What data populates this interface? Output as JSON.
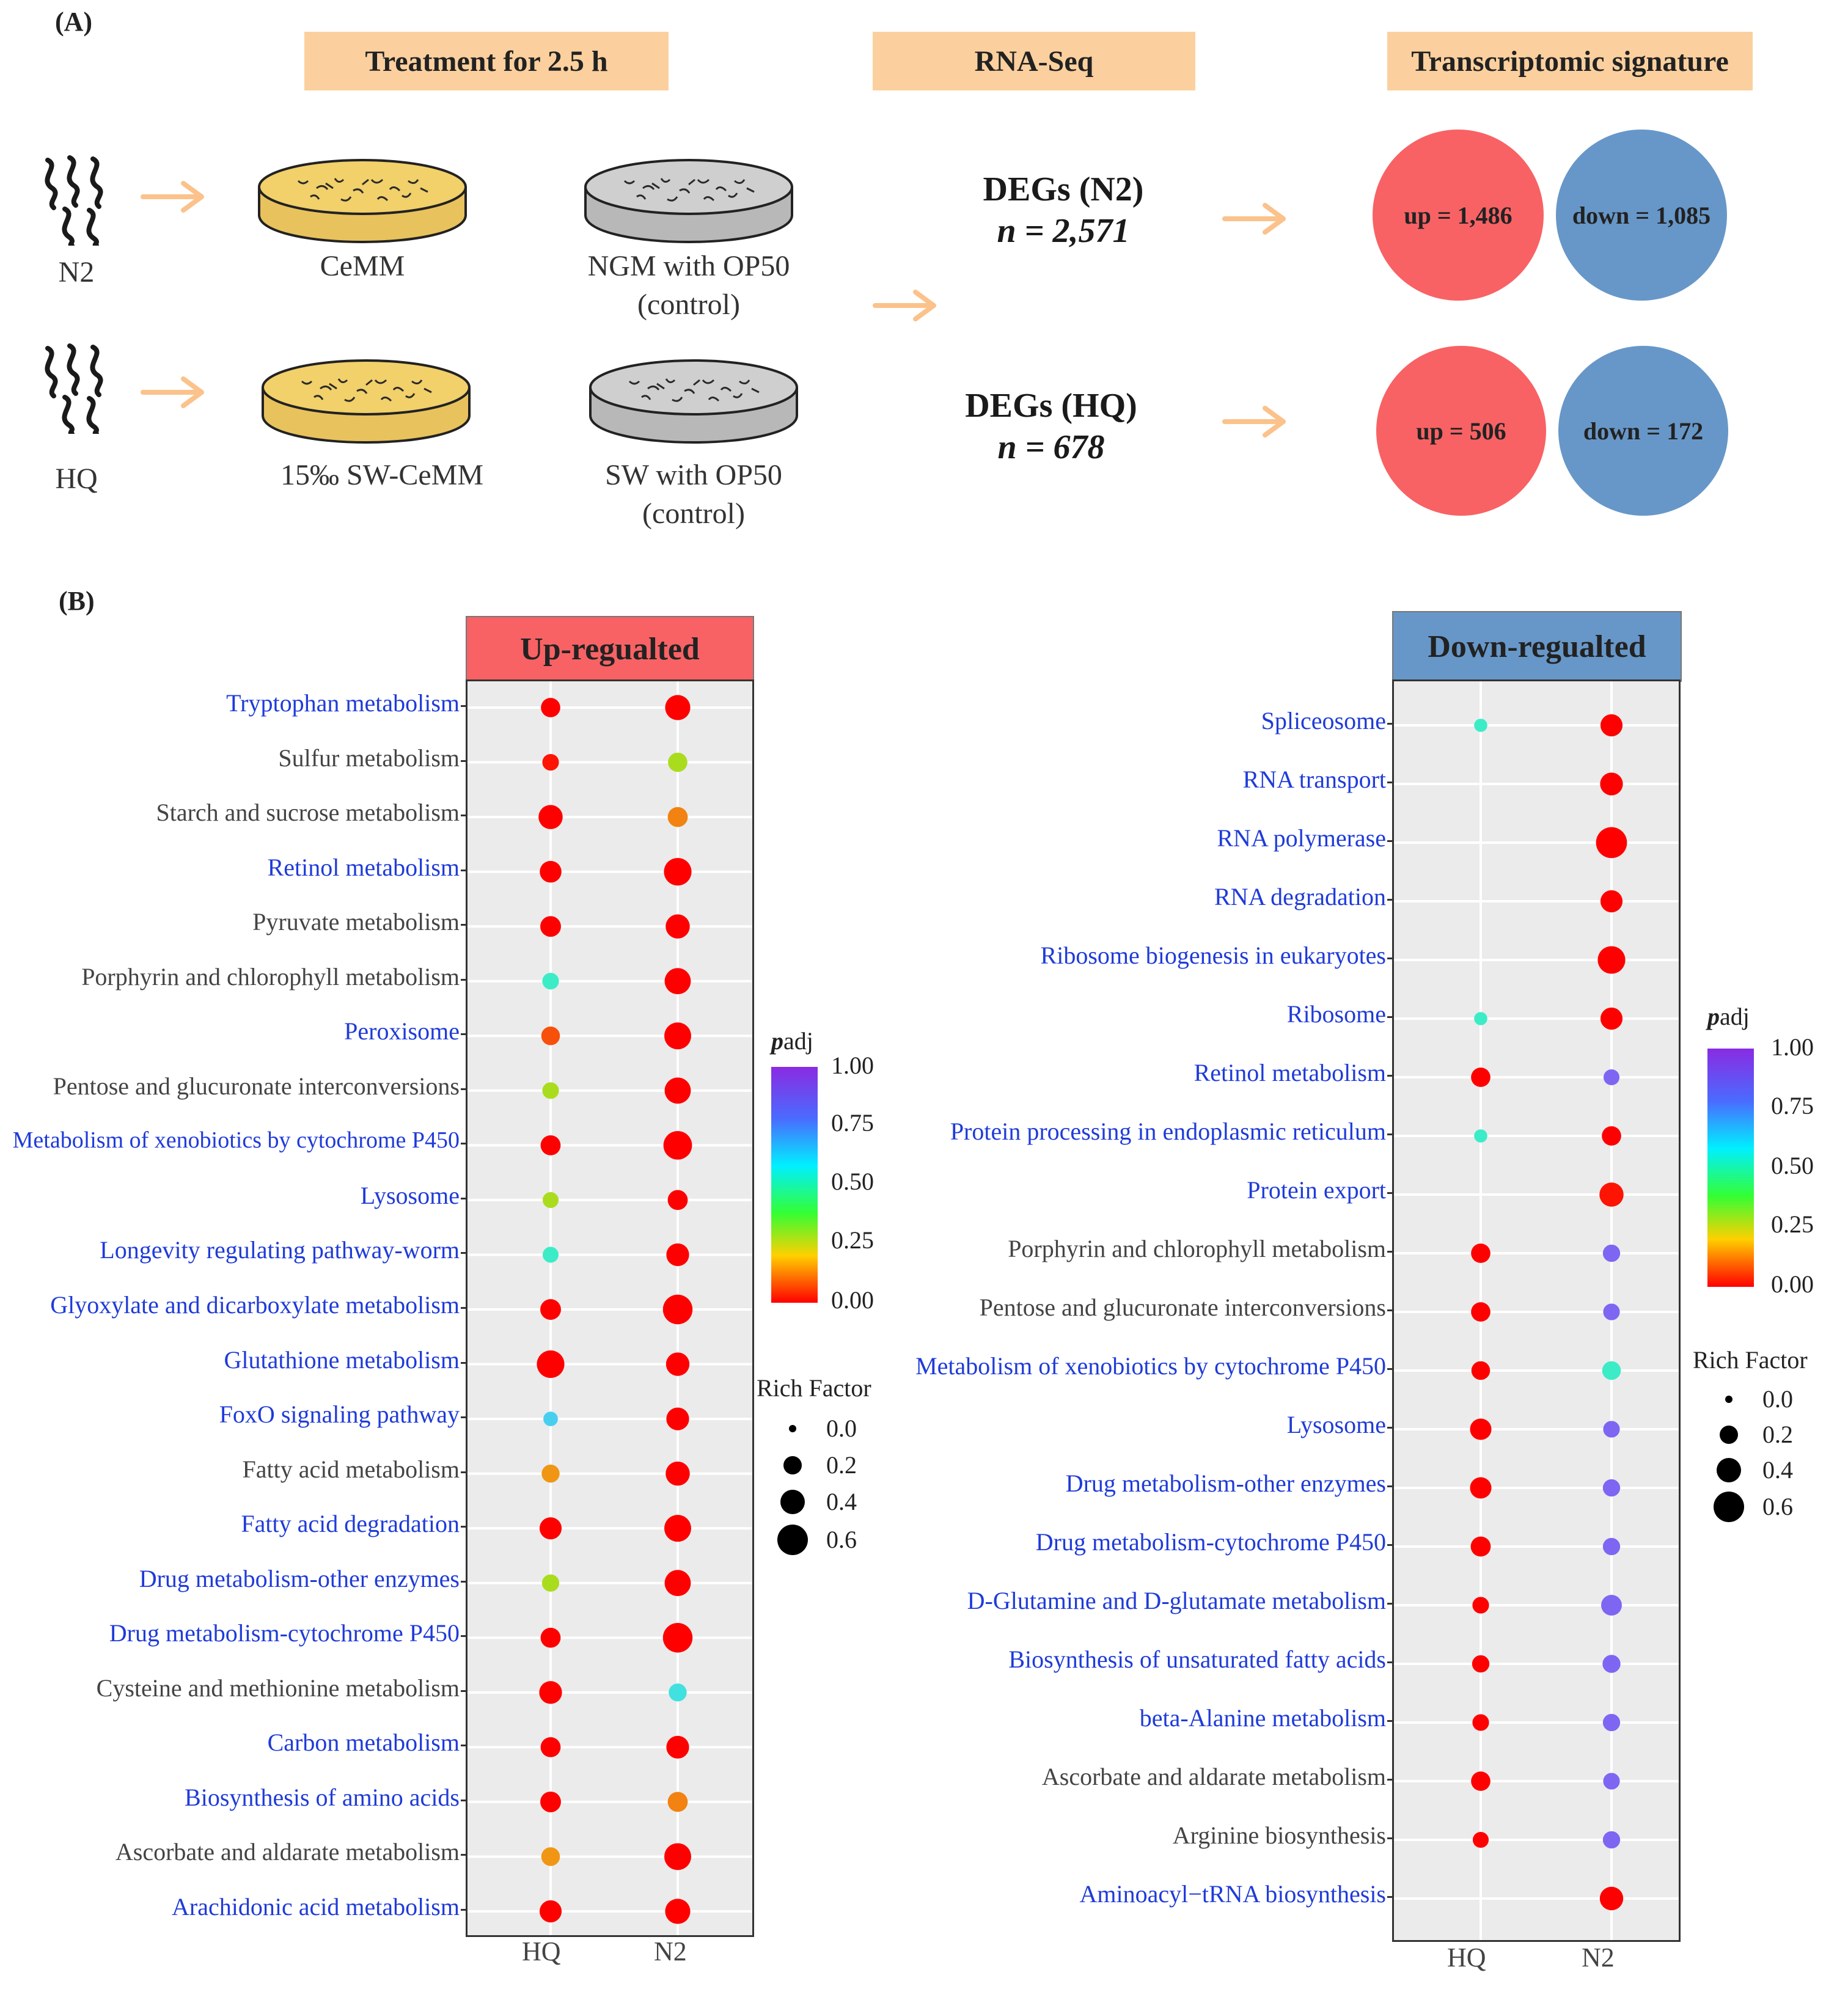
{
  "panel_a": {
    "label": "(A)",
    "headers": {
      "treatment": "Treatment for 2.5 h",
      "rnaseq": "RNA-Seq",
      "signature": "Transcriptomic signature"
    },
    "strains": {
      "n2": "N2",
      "hq": "HQ"
    },
    "dishes": {
      "cemm": "CeMM",
      "ngm_line1": "NGM with OP50",
      "ngm_line2": "(control)",
      "sw_cemm": "15‰ SW-CeMM",
      "sw_line1": "SW with OP50",
      "sw_line2": "(control)"
    },
    "degs": {
      "n2_title": "DEGs (N2)",
      "n2_n": "n = 2,571",
      "hq_title": "DEGs (HQ)",
      "hq_n": "n = 678"
    },
    "circles": {
      "n2_up": "up = 1,486",
      "n2_down": "down = 1,085",
      "hq_up": "up = 506",
      "hq_down": "down = 172"
    },
    "colors": {
      "header": "#fbd09e",
      "arrow": "#fbc28b",
      "up": "#f86264",
      "down": "#6797c8"
    }
  },
  "panel_b": {
    "label": "(B)"
  },
  "chart_data": [
    {
      "type": "scatter",
      "title": "Up-regualted",
      "title_color": "#f86264",
      "x_categories": [
        "HQ",
        "N2"
      ],
      "legend": {
        "color_title": "padj",
        "color_ticks": [
          "1.00",
          "0.75",
          "0.50",
          "0.25",
          "0.00"
        ],
        "size_title": "Rich Factor",
        "size_ticks": [
          "0.0",
          "0.2",
          "0.4",
          "0.6"
        ]
      },
      "rows": [
        {
          "pathway": "Tryptophan metabolism",
          "highlight": true,
          "hq": {
            "padj": 0.0,
            "rich": 0.28
          },
          "n2": {
            "padj": 0.0,
            "rich": 0.45
          }
        },
        {
          "pathway": "Sulfur metabolism",
          "highlight": false,
          "hq": {
            "padj": 0.02,
            "rich": 0.2
          },
          "n2": {
            "padj": 0.3,
            "rich": 0.28
          }
        },
        {
          "pathway": "Starch and sucrose metabolism",
          "highlight": false,
          "hq": {
            "padj": 0.0,
            "rich": 0.42
          },
          "n2": {
            "padj": 0.13,
            "rich": 0.3
          }
        },
        {
          "pathway": "Retinol metabolism",
          "highlight": true,
          "hq": {
            "padj": 0.0,
            "rich": 0.35
          },
          "n2": {
            "padj": 0.0,
            "rich": 0.52
          }
        },
        {
          "pathway": "Pyruvate metabolism",
          "highlight": false,
          "hq": {
            "padj": 0.0,
            "rich": 0.32
          },
          "n2": {
            "padj": 0.0,
            "rich": 0.42
          }
        },
        {
          "pathway": "Porphyrin and chlorophyll metabolism",
          "highlight": false,
          "hq": {
            "padj": 0.6,
            "rich": 0.2
          },
          "n2": {
            "padj": 0.0,
            "rich": 0.48
          }
        },
        {
          "pathway": "Peroxisome",
          "highlight": true,
          "hq": {
            "padj": 0.08,
            "rich": 0.26
          },
          "n2": {
            "padj": 0.0,
            "rich": 0.5
          }
        },
        {
          "pathway": "Pentose and glucuronate interconversions",
          "highlight": false,
          "hq": {
            "padj": 0.3,
            "rich": 0.2
          },
          "n2": {
            "padj": 0.0,
            "rich": 0.48
          }
        },
        {
          "pathway": "Metabolism of xenobiotics by cytochrome P450",
          "highlight": true,
          "hq": {
            "padj": 0.0,
            "rich": 0.3
          },
          "n2": {
            "padj": 0.0,
            "rich": 0.55
          }
        },
        {
          "pathway": "Lysosome",
          "highlight": true,
          "hq": {
            "padj": 0.3,
            "rich": 0.18
          },
          "n2": {
            "padj": 0.0,
            "rich": 0.3
          }
        },
        {
          "pathway": "Longevity regulating pathway-worm",
          "highlight": true,
          "hq": {
            "padj": 0.6,
            "rich": 0.18
          },
          "n2": {
            "padj": 0.0,
            "rich": 0.38
          }
        },
        {
          "pathway": "Glyoxylate and dicarboxylate metabolism",
          "highlight": true,
          "hq": {
            "padj": 0.0,
            "rich": 0.32
          },
          "n2": {
            "padj": 0.0,
            "rich": 0.58
          }
        },
        {
          "pathway": "Glutathione metabolism",
          "highlight": true,
          "hq": {
            "padj": 0.0,
            "rich": 0.52
          },
          "n2": {
            "padj": 0.0,
            "rich": 0.4
          }
        },
        {
          "pathway": "FoxO signaling pathway",
          "highlight": true,
          "hq": {
            "padj": 0.7,
            "rich": 0.14
          },
          "n2": {
            "padj": 0.0,
            "rich": 0.38
          }
        },
        {
          "pathway": "Fatty acid metabolism",
          "highlight": false,
          "hq": {
            "padj": 0.15,
            "rich": 0.24
          },
          "n2": {
            "padj": 0.0,
            "rich": 0.42
          }
        },
        {
          "pathway": "Fatty acid degradation",
          "highlight": true,
          "hq": {
            "padj": 0.0,
            "rich": 0.36
          },
          "n2": {
            "padj": 0.0,
            "rich": 0.5
          }
        },
        {
          "pathway": "Drug metabolism-other enzymes",
          "highlight": true,
          "hq": {
            "padj": 0.3,
            "rich": 0.22
          },
          "n2": {
            "padj": 0.0,
            "rich": 0.48
          }
        },
        {
          "pathway": "Drug metabolism-cytochrome P450",
          "highlight": true,
          "hq": {
            "padj": 0.0,
            "rich": 0.3
          },
          "n2": {
            "padj": 0.0,
            "rich": 0.58
          }
        },
        {
          "pathway": "Cysteine and methionine metabolism",
          "highlight": false,
          "hq": {
            "padj": 0.0,
            "rich": 0.38
          },
          "n2": {
            "padj": 0.65,
            "rich": 0.24
          }
        },
        {
          "pathway": "Carbon metabolism",
          "highlight": true,
          "hq": {
            "padj": 0.0,
            "rich": 0.3
          },
          "n2": {
            "padj": 0.0,
            "rich": 0.38
          }
        },
        {
          "pathway": "Biosynthesis of amino acids",
          "highlight": true,
          "hq": {
            "padj": 0.0,
            "rich": 0.32
          },
          "n2": {
            "padj": 0.13,
            "rich": 0.3
          }
        },
        {
          "pathway": "Ascorbate and aldarate metabolism",
          "highlight": false,
          "hq": {
            "padj": 0.15,
            "rich": 0.26
          },
          "n2": {
            "padj": 0.0,
            "rich": 0.5
          }
        },
        {
          "pathway": "Arachidonic acid metabolism",
          "highlight": true,
          "hq": {
            "padj": 0.0,
            "rich": 0.36
          },
          "n2": {
            "padj": 0.0,
            "rich": 0.45
          }
        }
      ]
    },
    {
      "type": "scatter",
      "title": "Down-regualted",
      "title_color": "#6797c8",
      "x_categories": [
        "HQ",
        "N2"
      ],
      "legend": {
        "color_title": "padj",
        "color_ticks": [
          "1.00",
          "0.75",
          "0.50",
          "0.25",
          "0.00"
        ],
        "size_title": "Rich Factor",
        "size_ticks": [
          "0.0",
          "0.2",
          "0.4",
          "0.6"
        ]
      },
      "rows": [
        {
          "pathway": "Spliceosome",
          "highlight": true,
          "hq": {
            "padj": 0.6,
            "rich": 0.1
          },
          "n2": {
            "padj": 0.0,
            "rich": 0.36
          }
        },
        {
          "pathway": "RNA transport",
          "highlight": true,
          "hq": null,
          "n2": {
            "padj": 0.0,
            "rich": 0.38
          }
        },
        {
          "pathway": "RNA polymerase",
          "highlight": true,
          "hq": null,
          "n2": {
            "padj": 0.0,
            "rich": 0.62
          }
        },
        {
          "pathway": "RNA degradation",
          "highlight": true,
          "hq": null,
          "n2": {
            "padj": 0.0,
            "rich": 0.36
          }
        },
        {
          "pathway": "Ribosome biogenesis in eukaryotes",
          "highlight": true,
          "hq": null,
          "n2": {
            "padj": 0.0,
            "rich": 0.52
          }
        },
        {
          "pathway": "Ribosome",
          "highlight": true,
          "hq": {
            "padj": 0.6,
            "rich": 0.1
          },
          "n2": {
            "padj": 0.0,
            "rich": 0.36
          }
        },
        {
          "pathway": "Retinol metabolism",
          "highlight": true,
          "hq": {
            "padj": 0.0,
            "rich": 0.28
          },
          "n2": {
            "padj": 0.95,
            "rich": 0.18
          }
        },
        {
          "pathway": "Protein processing in endoplasmic reticulum",
          "highlight": true,
          "hq": {
            "padj": 0.6,
            "rich": 0.1
          },
          "n2": {
            "padj": 0.0,
            "rich": 0.28
          }
        },
        {
          "pathway": "Protein export",
          "highlight": true,
          "hq": null,
          "n2": {
            "padj": 0.02,
            "rich": 0.42
          }
        },
        {
          "pathway": "Porphyrin and chlorophyll metabolism",
          "highlight": false,
          "hq": {
            "padj": 0.0,
            "rich": 0.28
          },
          "n2": {
            "padj": 0.95,
            "rich": 0.22
          }
        },
        {
          "pathway": "Pentose and glucuronate interconversions",
          "highlight": false,
          "hq": {
            "padj": 0.0,
            "rich": 0.28
          },
          "n2": {
            "padj": 0.95,
            "rich": 0.2
          }
        },
        {
          "pathway": "Metabolism of xenobiotics by cytochrome P450",
          "highlight": true,
          "hq": {
            "padj": 0.0,
            "rich": 0.26
          },
          "n2": {
            "padj": 0.6,
            "rich": 0.26
          }
        },
        {
          "pathway": "Lysosome",
          "highlight": true,
          "hq": {
            "padj": 0.0,
            "rich": 0.34
          },
          "n2": {
            "padj": 0.95,
            "rich": 0.2
          }
        },
        {
          "pathway": "Drug metabolism-other enzymes",
          "highlight": true,
          "hq": {
            "padj": 0.0,
            "rich": 0.34
          },
          "n2": {
            "padj": 0.95,
            "rich": 0.22
          }
        },
        {
          "pathway": "Drug metabolism-cytochrome P450",
          "highlight": true,
          "hq": {
            "padj": 0.0,
            "rich": 0.3
          },
          "n2": {
            "padj": 0.95,
            "rich": 0.22
          }
        },
        {
          "pathway": "D-Glutamine and D-glutamate metabolism",
          "highlight": true,
          "hq": {
            "padj": 0.0,
            "rich": 0.2
          },
          "n2": {
            "padj": 0.95,
            "rich": 0.32
          }
        },
        {
          "pathway": "Biosynthesis of unsaturated fatty acids",
          "highlight": true,
          "hq": {
            "padj": 0.0,
            "rich": 0.22
          },
          "n2": {
            "padj": 0.95,
            "rich": 0.24
          }
        },
        {
          "pathway": "beta-Alanine metabolism",
          "highlight": true,
          "hq": {
            "padj": 0.0,
            "rich": 0.2
          },
          "n2": {
            "padj": 0.95,
            "rich": 0.22
          }
        },
        {
          "pathway": "Ascorbate and aldarate metabolism",
          "highlight": false,
          "hq": {
            "padj": 0.0,
            "rich": 0.28
          },
          "n2": {
            "padj": 0.95,
            "rich": 0.2
          }
        },
        {
          "pathway": "Arginine biosynthesis",
          "highlight": false,
          "hq": {
            "padj": 0.0,
            "rich": 0.18
          },
          "n2": {
            "padj": 0.95,
            "rich": 0.22
          }
        },
        {
          "pathway": "Aminoacyl−tRNA biosynthesis",
          "highlight": true,
          "hq": null,
          "n2": {
            "padj": 0.0,
            "rich": 0.4
          }
        }
      ]
    }
  ]
}
